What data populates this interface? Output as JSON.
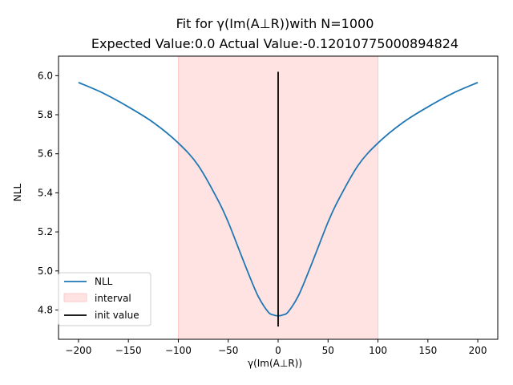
{
  "chart_data": {
    "type": "line",
    "title_line1": "Fit for γ(Im(A⊥R))with N=1000",
    "title_line2": "Expected Value:0.0 Actual Value:-0.12010775000894824",
    "xlabel": "γ(Im(A⊥R))",
    "ylabel": "NLL",
    "xlim": [
      -220,
      220
    ],
    "ylim": [
      4.65,
      6.1
    ],
    "xticks": [
      -200,
      -150,
      -100,
      -50,
      0,
      50,
      100,
      150,
      200
    ],
    "xtick_labels": [
      "−200",
      "−150",
      "−100",
      "−50",
      "0",
      "50",
      "100",
      "150",
      "200"
    ],
    "yticks": [
      4.8,
      5.0,
      5.2,
      5.4,
      5.6,
      5.8,
      6.0
    ],
    "ytick_labels": [
      "4.8",
      "5.0",
      "5.2",
      "5.4",
      "5.6",
      "5.8",
      "6.0"
    ],
    "grid": false,
    "legend_position": "lower-left",
    "series": [
      {
        "name": "NLL",
        "color": "#1f77b4",
        "x": [
          -200,
          -175,
          -150,
          -125,
          -100,
          -80,
          -60,
          -50,
          -40,
          -30,
          -20,
          -10,
          -5,
          0,
          5,
          10,
          20,
          30,
          40,
          50,
          60,
          80,
          100,
          125,
          150,
          175,
          200
        ],
        "y": [
          5.965,
          5.91,
          5.84,
          5.76,
          5.655,
          5.54,
          5.36,
          5.25,
          5.12,
          4.99,
          4.87,
          4.79,
          4.775,
          4.77,
          4.775,
          4.79,
          4.87,
          4.99,
          5.12,
          5.25,
          5.36,
          5.54,
          5.655,
          5.76,
          5.84,
          5.91,
          5.965
        ]
      }
    ],
    "interval": {
      "name": "interval",
      "x": [
        -100,
        100
      ],
      "color": "#ffc0c0"
    },
    "init_value": {
      "name": "init value",
      "x": 0,
      "y": [
        4.715,
        6.02
      ],
      "color": "#000000"
    }
  }
}
